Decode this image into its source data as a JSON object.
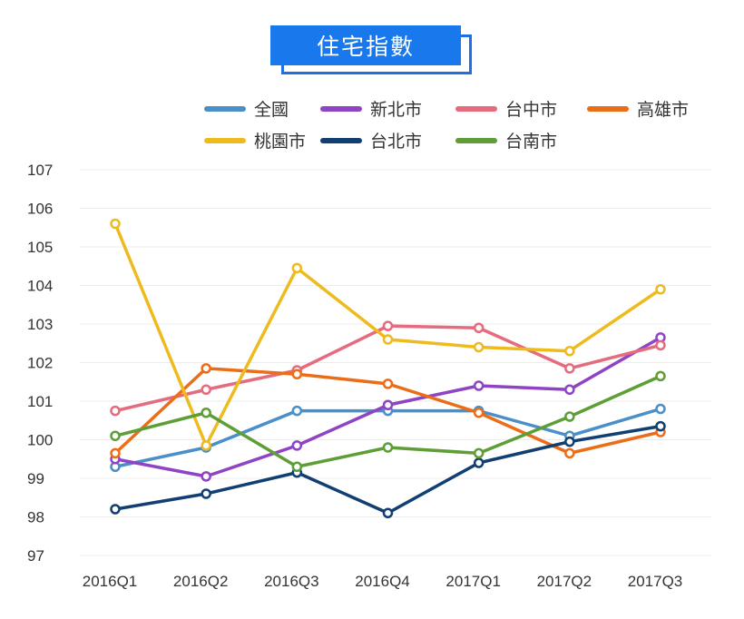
{
  "chart_data": {
    "type": "line",
    "title": "住宅指數",
    "categories": [
      "2016Q1",
      "2016Q2",
      "2016Q3",
      "2016Q4",
      "2017Q1",
      "2017Q2",
      "2017Q3"
    ],
    "ylim": [
      97,
      107
    ],
    "yticks": [
      97,
      98,
      99,
      100,
      101,
      102,
      103,
      104,
      105,
      106,
      107
    ],
    "grid": true,
    "legend_position": "top-right",
    "series": [
      {
        "name": "全國",
        "color": "#4a8fc8",
        "values": [
          99.3,
          99.8,
          100.75,
          100.75,
          100.75,
          100.1,
          100.8
        ]
      },
      {
        "name": "新北市",
        "color": "#8e44c4",
        "values": [
          99.5,
          99.05,
          99.85,
          100.9,
          101.4,
          101.3,
          102.65
        ]
      },
      {
        "name": "台中市",
        "color": "#e56b7e",
        "values": [
          100.75,
          101.3,
          101.8,
          102.95,
          102.9,
          101.85,
          102.45
        ]
      },
      {
        "name": "高雄市",
        "color": "#ec6d18",
        "values": [
          99.65,
          101.85,
          101.7,
          101.45,
          100.7,
          99.65,
          100.2
        ]
      },
      {
        "name": "桃園市",
        "color": "#eebb1e",
        "values": [
          105.6,
          99.85,
          104.45,
          102.6,
          102.4,
          102.3,
          103.9
        ]
      },
      {
        "name": "台北市",
        "color": "#123f72",
        "values": [
          98.2,
          98.6,
          99.15,
          98.1,
          99.4,
          99.95,
          100.35
        ]
      },
      {
        "name": "台南市",
        "color": "#5e9e36",
        "values": [
          100.1,
          100.7,
          99.3,
          99.8,
          99.65,
          100.6,
          101.65
        ]
      }
    ]
  }
}
